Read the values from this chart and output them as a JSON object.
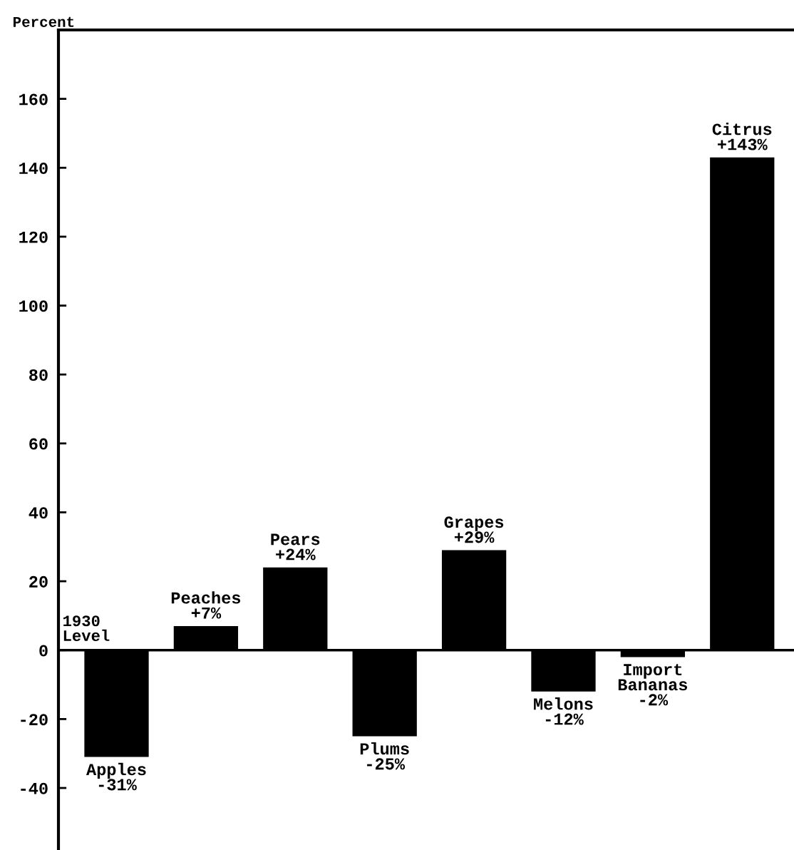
{
  "chart_data": {
    "type": "bar",
    "ylabel": "Percent",
    "categories": [
      "Apples",
      "Peaches",
      "Pears",
      "Plums",
      "Grapes",
      "Melons",
      "Import\nBananas",
      "Citrus"
    ],
    "values": [
      -31,
      7,
      24,
      -25,
      29,
      -12,
      -2,
      143
    ],
    "value_labels": [
      "-31%",
      "+7%",
      "+24%",
      "-25%",
      "+29%",
      "-12%",
      "-2%",
      "+143%"
    ],
    "color": "#000000",
    "ylim": [
      -58,
      180
    ],
    "yticks": [
      -40,
      -20,
      0,
      20,
      40,
      60,
      80,
      100,
      120,
      140,
      160
    ],
    "ref_lines": [
      {
        "axis": "y",
        "value": 0,
        "label": "1930\nLevel",
        "color": "#000000"
      }
    ],
    "grid": false,
    "legend": false
  }
}
